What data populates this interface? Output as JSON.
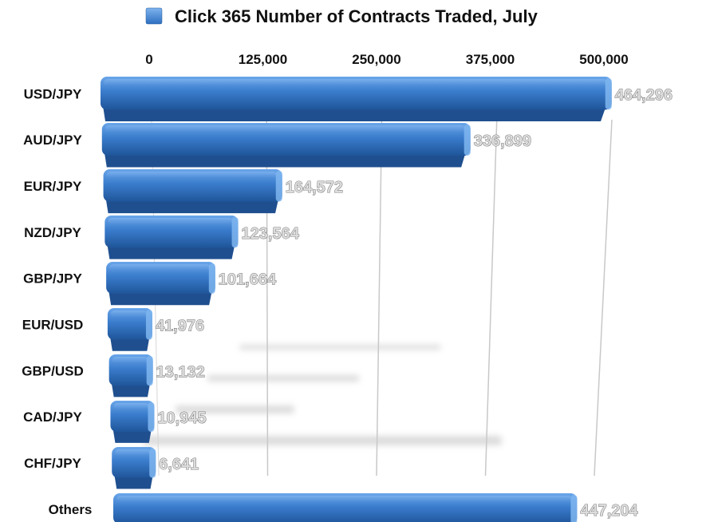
{
  "chart_data": {
    "type": "bar",
    "orientation": "horizontal",
    "title": "Click 365 Number of Contracts Traded, July",
    "legend_position": "top-center",
    "categories": [
      "USD/JPY",
      "AUD/JPY",
      "EUR/JPY",
      "NZD/JPY",
      "GBP/JPY",
      "EUR/USD",
      "GBP/USD",
      "CAD/JPY",
      "CHF/JPY",
      "Others"
    ],
    "values": [
      464296,
      336899,
      164572,
      123564,
      101664,
      41976,
      13132,
      10945,
      6641,
      447204
    ],
    "value_labels": [
      "464,296",
      "336,899",
      "164,572",
      "123,564",
      "101,664",
      "41,976",
      "13,132",
      "10,945",
      "6,641",
      "447,204"
    ],
    "xlim": [
      0,
      500000
    ],
    "xticks": [
      0,
      125000,
      250000,
      375000,
      500000
    ],
    "xtick_labels": [
      "0",
      "125,000",
      "250,000",
      "375,000",
      "500,000"
    ],
    "grid": true,
    "bar_color": "#3a7ccc"
  }
}
